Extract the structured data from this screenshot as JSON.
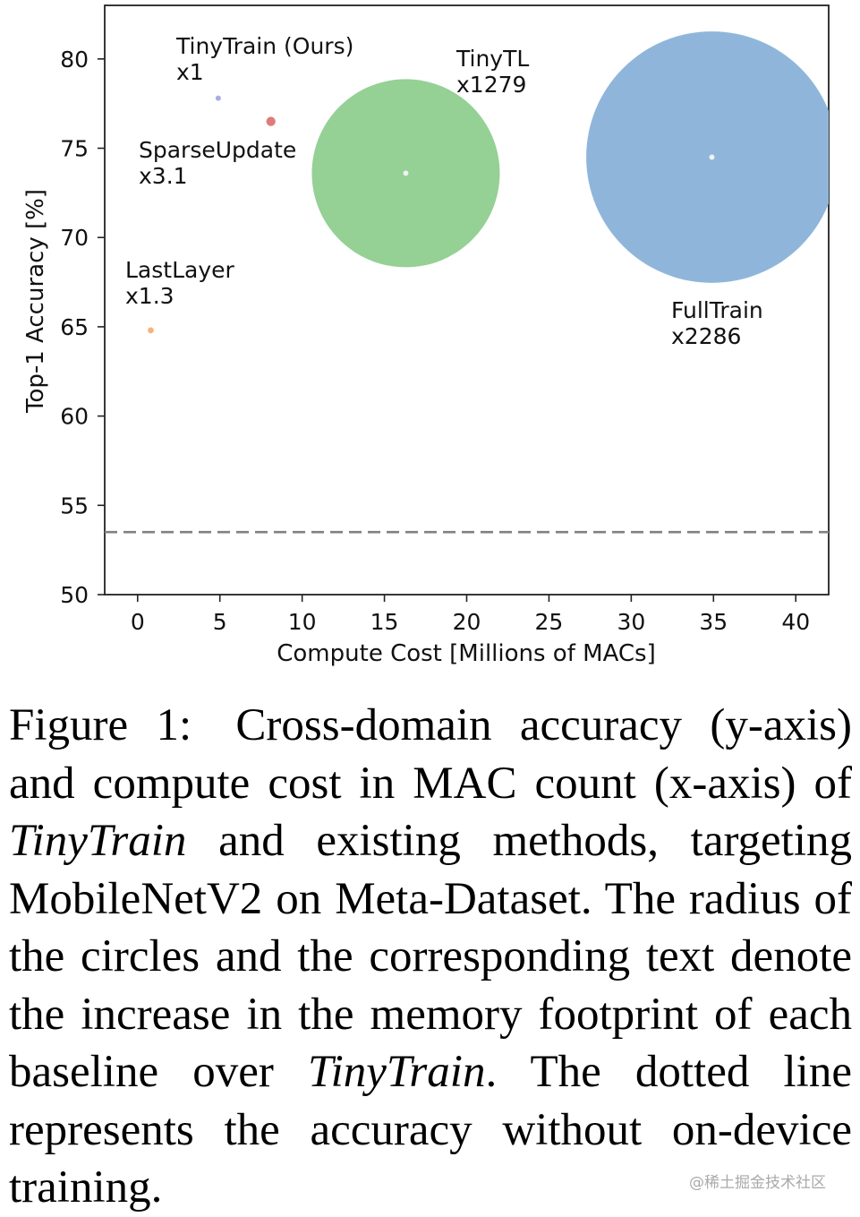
{
  "chart_data": {
    "type": "scatter",
    "title": "",
    "xlabel": "Compute Cost [Millions of MACs]",
    "ylabel": "Top-1 Accuracy [%]",
    "xlim": [
      -2,
      42
    ],
    "ylim": [
      50,
      83
    ],
    "xticks": [
      0,
      5,
      10,
      15,
      20,
      25,
      30,
      35,
      40
    ],
    "yticks": [
      50,
      55,
      60,
      65,
      70,
      75,
      80
    ],
    "grid": false,
    "size_encodes": "memory footprint increase over TinyTrain",
    "points": [
      {
        "x": 0.8,
        "y": 64.8,
        "memory_factor": 1.3,
        "label": "LastLayer",
        "sublabel": "x1.3",
        "color": "#f5b27a"
      },
      {
        "x": 4.9,
        "y": 77.8,
        "memory_factor": 1,
        "label": "TinyTrain (Ours)",
        "sublabel": "x1",
        "color": "#a8aee0"
      },
      {
        "x": 8.1,
        "y": 76.5,
        "memory_factor": 3.1,
        "label": "SparseUpdate",
        "sublabel": "x3.1",
        "color": "#e07b7b"
      },
      {
        "x": 16.3,
        "y": 73.6,
        "memory_factor": 1279,
        "label": "TinyTL",
        "sublabel": "x1279",
        "color": "#95d095"
      },
      {
        "x": 34.9,
        "y": 74.5,
        "memory_factor": 2286,
        "label": "FullTrain",
        "sublabel": "x2286",
        "color": "#8fb6da"
      }
    ],
    "reference_line": {
      "y": 53.5,
      "style": "dashed",
      "color": "#808080"
    }
  },
  "caption": {
    "figure_label": "Figure 1:",
    "text_part1": "Cross-domain accuracy (y-axis) and compute cost in MAC count (x-axis) of",
    "emphasis1": "TinyTrain",
    "text_part2": "and existing methods, targeting MobileNetV2 on Meta-Dataset. The radius of the circles and the corresponding text denote the increase in the memory footprint of each baseline over",
    "emphasis2": "TinyTrain",
    "text_part3": ". The dotted line represents the accuracy without on-device training."
  },
  "watermark": "@稀土掘金技术社区"
}
